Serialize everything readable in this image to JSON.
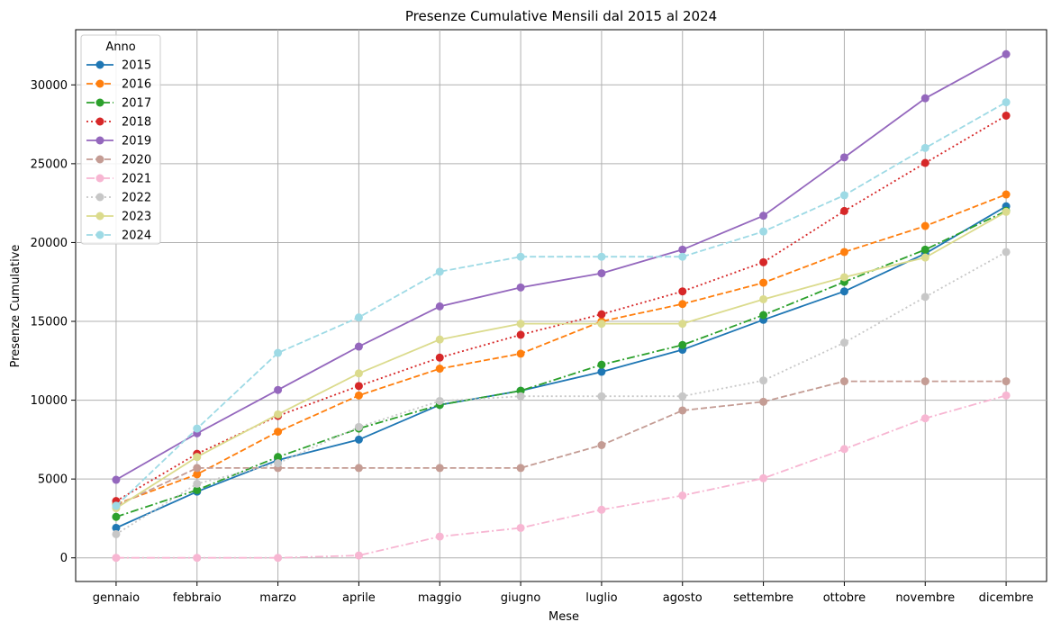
{
  "chart_data": {
    "type": "line",
    "title": "Presenze Cumulative Mensili dal 2015 al 2024",
    "xlabel": "Mese",
    "ylabel": "Presenze Cumulative",
    "categories": [
      "gennaio",
      "febbraio",
      "marzo",
      "aprile",
      "maggio",
      "giugno",
      "luglio",
      "agosto",
      "settembre",
      "ottobre",
      "novembre",
      "dicembre"
    ],
    "ylim": [
      -1500,
      33500
    ],
    "yticks": [
      0,
      5000,
      10000,
      15000,
      20000,
      25000,
      30000
    ],
    "grid": true,
    "legend": {
      "title": "Anno",
      "placement": "top-left"
    },
    "series": [
      {
        "name": "2015",
        "color": "#1f77b4",
        "dash": "solid",
        "values": [
          1900,
          4200,
          6200,
          7500,
          9700,
          10600,
          11800,
          13200,
          15100,
          16900,
          19300,
          22300
        ]
      },
      {
        "name": "2016",
        "color": "#ff7f0e",
        "dash": "dashed",
        "values": [
          3400,
          5300,
          8000,
          10300,
          12000,
          12950,
          15000,
          16100,
          17450,
          19400,
          21050,
          23050
        ]
      },
      {
        "name": "2017",
        "color": "#2ca02c",
        "dash": "dashdot",
        "values": [
          2600,
          4300,
          6400,
          8200,
          9700,
          10600,
          12250,
          13500,
          15400,
          17500,
          19550,
          22000
        ]
      },
      {
        "name": "2018",
        "color": "#d62728",
        "dash": "dotted",
        "values": [
          3600,
          6600,
          9000,
          10900,
          12700,
          14150,
          15450,
          16900,
          18750,
          22000,
          25050,
          28050
        ]
      },
      {
        "name": "2019",
        "color": "#9467bd",
        "dash": "solid",
        "values": [
          4950,
          7900,
          10650,
          13400,
          15950,
          17150,
          18050,
          19550,
          21700,
          25400,
          29150,
          31950
        ]
      },
      {
        "name": "2020",
        "color": "#c49c94",
        "dash": "dashed",
        "values": [
          3300,
          5700,
          5700,
          5700,
          5700,
          5700,
          7150,
          9350,
          9900,
          11200,
          11200,
          11200
        ]
      },
      {
        "name": "2021",
        "color": "#f7b6d2",
        "dash": "dashdot",
        "values": [
          0,
          0,
          0,
          150,
          1350,
          1900,
          3050,
          3950,
          5050,
          6900,
          8850,
          10300
        ]
      },
      {
        "name": "2022",
        "color": "#c7c7c7",
        "dash": "dotted",
        "values": [
          1500,
          4700,
          6000,
          8300,
          9950,
          10250,
          10250,
          10250,
          11250,
          13650,
          16550,
          19400
        ]
      },
      {
        "name": "2023",
        "color": "#dbdb8d",
        "dash": "solid",
        "values": [
          3150,
          6400,
          9100,
          11700,
          13850,
          14850,
          14850,
          14850,
          16400,
          17800,
          19050,
          21950
        ]
      },
      {
        "name": "2024",
        "color": "#9edae5",
        "dash": "dashed",
        "values": [
          3300,
          8200,
          13000,
          15250,
          18150,
          19100,
          19100,
          19100,
          20700,
          23000,
          26000,
          28900
        ]
      }
    ]
  }
}
